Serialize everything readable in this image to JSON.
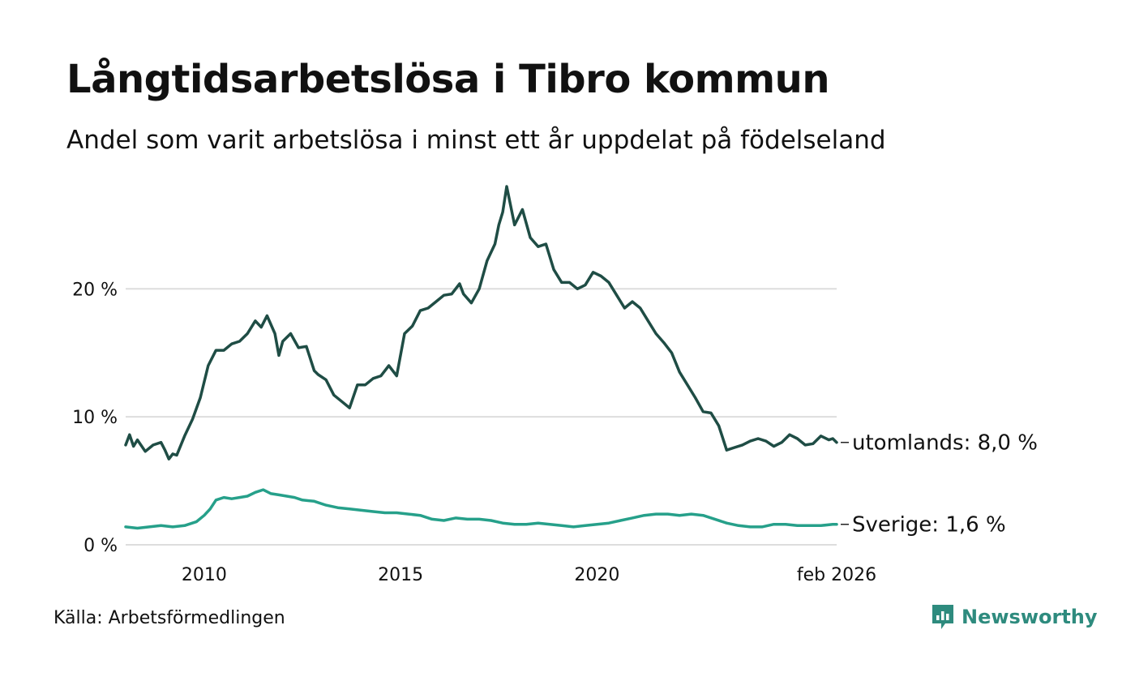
{
  "title": "Långtidsarbetslösa i Tibro kommun",
  "subtitle": "Andel som varit arbetslösa i minst ett år uppdelat på födelseland",
  "source": "Källa: Arbetsförmedlingen",
  "brand": {
    "name": "Newsworthy",
    "icon": "newsworthy-logo-icon",
    "color": "#2e8b7e"
  },
  "chart_data": {
    "type": "line",
    "title": "Långtidsarbetslösa i Tibro kommun",
    "xlabel": "",
    "ylabel": "",
    "xlim": [
      2008.0,
      2026.1
    ],
    "ylim": [
      0,
      28
    ],
    "y_ticks": [
      0,
      10,
      20
    ],
    "y_tick_labels": [
      "0 %",
      "10 %",
      "20 %"
    ],
    "x_ticks": [
      2010,
      2015,
      2020,
      2026.1
    ],
    "x_tick_labels": [
      "2010",
      "2015",
      "2020",
      "feb 2026"
    ],
    "grid": true,
    "series": [
      {
        "name": "utomlands",
        "end_label": "utomlands: 8,0 %",
        "color": "#1f4d45",
        "x": [
          2008.0,
          2008.1,
          2008.2,
          2008.3,
          2008.5,
          2008.7,
          2008.9,
          2009.0,
          2009.1,
          2009.2,
          2009.3,
          2009.5,
          2009.7,
          2009.9,
          2010.1,
          2010.3,
          2010.5,
          2010.7,
          2010.9,
          2011.1,
          2011.3,
          2011.45,
          2011.6,
          2011.8,
          2011.9,
          2012.0,
          2012.2,
          2012.4,
          2012.6,
          2012.8,
          2012.9,
          2013.1,
          2013.3,
          2013.5,
          2013.7,
          2013.9,
          2014.1,
          2014.3,
          2014.5,
          2014.7,
          2014.9,
          2015.1,
          2015.3,
          2015.5,
          2015.7,
          2015.9,
          2016.1,
          2016.3,
          2016.5,
          2016.6,
          2016.8,
          2017.0,
          2017.2,
          2017.4,
          2017.5,
          2017.6,
          2017.7,
          2017.9,
          2018.1,
          2018.3,
          2018.5,
          2018.7,
          2018.9,
          2019.1,
          2019.3,
          2019.5,
          2019.7,
          2019.9,
          2020.1,
          2020.3,
          2020.5,
          2020.7,
          2020.9,
          2021.1,
          2021.3,
          2021.5,
          2021.7,
          2021.9,
          2022.1,
          2022.3,
          2022.5,
          2022.7,
          2022.9,
          2023.1,
          2023.3,
          2023.5,
          2023.7,
          2023.9,
          2024.1,
          2024.3,
          2024.5,
          2024.7,
          2024.9,
          2025.1,
          2025.3,
          2025.5,
          2025.7,
          2025.9,
          2026.0,
          2026.1
        ],
        "y": [
          7.8,
          8.6,
          7.7,
          8.2,
          7.3,
          7.8,
          8.0,
          7.4,
          6.7,
          7.1,
          7.0,
          8.5,
          9.8,
          11.5,
          14.0,
          15.2,
          15.2,
          15.7,
          15.9,
          16.5,
          17.5,
          17.0,
          17.9,
          16.5,
          14.8,
          15.9,
          16.5,
          15.4,
          15.5,
          13.6,
          13.3,
          12.9,
          11.7,
          11.2,
          10.7,
          12.5,
          12.5,
          13.0,
          13.2,
          14.0,
          13.2,
          16.5,
          17.1,
          18.3,
          18.5,
          19.0,
          19.5,
          19.6,
          20.4,
          19.6,
          18.9,
          20.0,
          22.2,
          23.5,
          25.0,
          26.0,
          28.0,
          25.0,
          26.2,
          24.0,
          23.3,
          23.5,
          21.5,
          20.5,
          20.5,
          20.0,
          20.3,
          21.3,
          21.0,
          20.5,
          19.5,
          18.5,
          19.0,
          18.5,
          17.5,
          16.5,
          15.8,
          15.0,
          13.5,
          12.5,
          11.5,
          10.4,
          10.3,
          9.3,
          7.4,
          7.6,
          7.8,
          8.1,
          8.3,
          8.1,
          7.7,
          8.0,
          8.6,
          8.3,
          7.8,
          7.9,
          8.5,
          8.2,
          8.3,
          8.0
        ]
      },
      {
        "name": "Sverige",
        "end_label": "Sverige: 1,6 %",
        "color": "#26a08a",
        "x": [
          2008.0,
          2008.3,
          2008.6,
          2008.9,
          2009.2,
          2009.5,
          2009.8,
          2010.0,
          2010.15,
          2010.3,
          2010.5,
          2010.7,
          2010.9,
          2011.1,
          2011.3,
          2011.5,
          2011.7,
          2011.9,
          2012.1,
          2012.3,
          2012.5,
          2012.8,
          2013.1,
          2013.4,
          2013.7,
          2014.0,
          2014.3,
          2014.6,
          2014.9,
          2015.2,
          2015.5,
          2015.8,
          2016.1,
          2016.4,
          2016.7,
          2017.0,
          2017.3,
          2017.6,
          2017.9,
          2018.2,
          2018.5,
          2018.8,
          2019.1,
          2019.4,
          2019.7,
          2020.0,
          2020.3,
          2020.6,
          2020.9,
          2021.2,
          2021.5,
          2021.8,
          2022.1,
          2022.4,
          2022.7,
          2023.0,
          2023.3,
          2023.6,
          2023.9,
          2024.2,
          2024.5,
          2024.8,
          2025.1,
          2025.4,
          2025.7,
          2026.0,
          2026.1
        ],
        "y": [
          1.4,
          1.3,
          1.4,
          1.5,
          1.4,
          1.5,
          1.8,
          2.3,
          2.8,
          3.5,
          3.7,
          3.6,
          3.7,
          3.8,
          4.1,
          4.3,
          4.0,
          3.9,
          3.8,
          3.7,
          3.5,
          3.4,
          3.1,
          2.9,
          2.8,
          2.7,
          2.6,
          2.5,
          2.5,
          2.4,
          2.3,
          2.0,
          1.9,
          2.1,
          2.0,
          2.0,
          1.9,
          1.7,
          1.6,
          1.6,
          1.7,
          1.6,
          1.5,
          1.4,
          1.5,
          1.6,
          1.7,
          1.9,
          2.1,
          2.3,
          2.4,
          2.4,
          2.3,
          2.4,
          2.3,
          2.0,
          1.7,
          1.5,
          1.4,
          1.4,
          1.6,
          1.6,
          1.5,
          1.5,
          1.5,
          1.6,
          1.6
        ]
      }
    ]
  }
}
